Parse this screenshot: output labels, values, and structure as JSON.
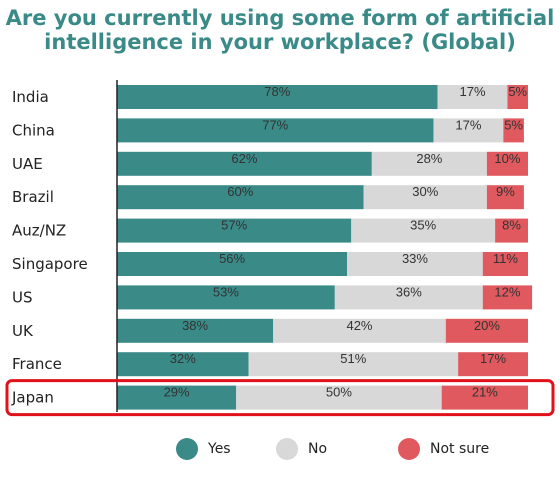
{
  "chart_data": {
    "type": "bar",
    "orientation": "horizontal",
    "stacked": true,
    "normalized": "percent",
    "title": "Are you currently using some form of artificial intelligence in your workplace? (Global)",
    "title_lines": [
      "Are you currently using some form of artificial",
      "intelligence in your workplace? (Global)"
    ],
    "categories": [
      "India",
      "China",
      "UAE",
      "Brazil",
      "Auz/NZ",
      "Singapore",
      "US",
      "UK",
      "France",
      "Japan"
    ],
    "series": [
      {
        "name": "Yes",
        "color": "#3a8a88",
        "values": [
          78,
          77,
          62,
          60,
          57,
          56,
          53,
          38,
          32,
          29
        ]
      },
      {
        "name": "No",
        "color": "#d8d8d8",
        "values": [
          17,
          17,
          28,
          30,
          35,
          33,
          36,
          42,
          51,
          50
        ]
      },
      {
        "name": "Not sure",
        "color": "#e0595e",
        "values": [
          5,
          5,
          10,
          9,
          8,
          11,
          12,
          20,
          17,
          21
        ]
      }
    ],
    "value_labels": [
      [
        "78%",
        "77%",
        "62%",
        "60%",
        "57%",
        "56%",
        "53%",
        "38%",
        "32%",
        "29%"
      ],
      [
        "17%",
        "17%",
        "28%",
        "30%",
        "35%",
        "33%",
        "36%",
        "42%",
        "51%",
        "50%"
      ],
      [
        "5%",
        "5%",
        "10%",
        "9%",
        "8%",
        "11%",
        "12%",
        "20%",
        "17%",
        "21%"
      ]
    ],
    "highlighted_category": "Japan",
    "highlight_color": "#e0111a",
    "legend_position": "bottom",
    "grid": false
  }
}
